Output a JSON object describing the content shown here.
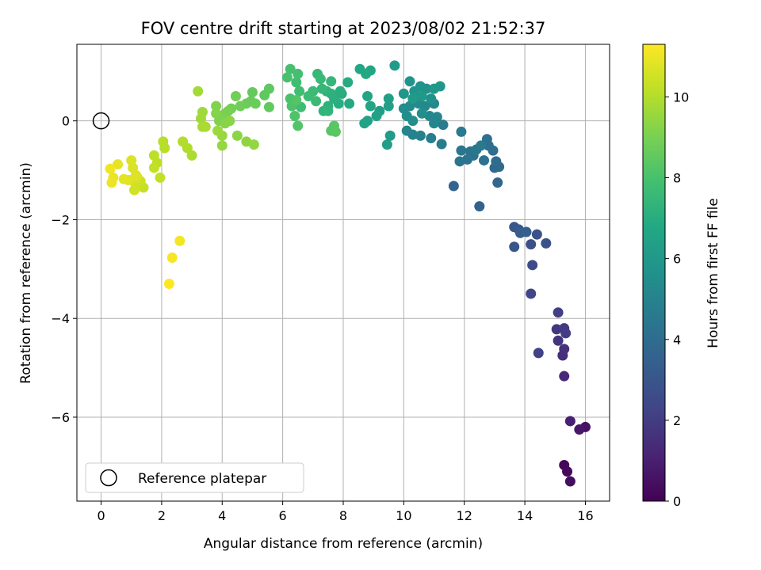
{
  "chart_data": {
    "type": "scatter",
    "title": "FOV centre drift starting at 2023/08/02 21:52:37",
    "xlabel": "Angular distance from reference (arcmin)",
    "ylabel": "Rotation from reference (arcmin)",
    "xlim": [
      -0.8,
      16.8
    ],
    "ylim": [
      -7.7,
      1.55
    ],
    "xticks": [
      0,
      2,
      4,
      6,
      8,
      10,
      12,
      14,
      16
    ],
    "xtick_labels": [
      "0",
      "2",
      "4",
      "6",
      "8",
      "10",
      "12",
      "14",
      "16"
    ],
    "yticks": [
      0,
      -2,
      -4,
      -6
    ],
    "ytick_labels": [
      "0",
      "−2",
      "−4",
      "−6"
    ],
    "grid": true,
    "legend": {
      "placement": "lower-left",
      "entries": [
        "Reference platepar"
      ]
    },
    "reference_point": {
      "x": 0,
      "y": 0
    },
    "colorbar": {
      "label": "Hours from first FF file",
      "colormap": "viridis",
      "range": [
        0,
        11.3
      ],
      "ticks": [
        0,
        2,
        4,
        6,
        8,
        10
      ],
      "tick_labels": [
        "0",
        "2",
        "4",
        "6",
        "8",
        "10"
      ]
    },
    "points": [
      {
        "x": 15.3,
        "y": -6.97,
        "h": 0.2
      },
      {
        "x": 15.4,
        "y": -7.1,
        "h": 0.3
      },
      {
        "x": 15.5,
        "y": -7.3,
        "h": 0.4
      },
      {
        "x": 16.0,
        "y": -6.2,
        "h": 0.5
      },
      {
        "x": 15.8,
        "y": -6.25,
        "h": 0.7
      },
      {
        "x": 15.5,
        "y": -6.08,
        "h": 1.0
      },
      {
        "x": 15.3,
        "y": -5.17,
        "h": 1.3
      },
      {
        "x": 15.25,
        "y": -4.75,
        "h": 1.5
      },
      {
        "x": 15.3,
        "y": -4.62,
        "h": 1.6
      },
      {
        "x": 15.1,
        "y": -4.45,
        "h": 1.7
      },
      {
        "x": 15.05,
        "y": -4.22,
        "h": 1.8
      },
      {
        "x": 15.3,
        "y": -4.2,
        "h": 1.9
      },
      {
        "x": 15.35,
        "y": -4.3,
        "h": 2.0
      },
      {
        "x": 15.1,
        "y": -3.88,
        "h": 2.1
      },
      {
        "x": 14.45,
        "y": -4.7,
        "h": 2.2
      },
      {
        "x": 14.2,
        "y": -3.5,
        "h": 2.4
      },
      {
        "x": 14.25,
        "y": -2.92,
        "h": 2.6
      },
      {
        "x": 14.2,
        "y": -2.5,
        "h": 2.7
      },
      {
        "x": 14.4,
        "y": -2.3,
        "h": 2.8
      },
      {
        "x": 14.7,
        "y": -2.48,
        "h": 2.9
      },
      {
        "x": 13.65,
        "y": -2.55,
        "h": 3.0
      },
      {
        "x": 13.65,
        "y": -2.15,
        "h": 3.1
      },
      {
        "x": 13.8,
        "y": -2.2,
        "h": 3.2
      },
      {
        "x": 13.85,
        "y": -2.27,
        "h": 3.3
      },
      {
        "x": 14.05,
        "y": -2.25,
        "h": 3.4
      },
      {
        "x": 12.5,
        "y": -1.73,
        "h": 3.5
      },
      {
        "x": 11.65,
        "y": -1.32,
        "h": 3.6
      },
      {
        "x": 13.1,
        "y": -1.25,
        "h": 3.7
      },
      {
        "x": 13.0,
        "y": -0.95,
        "h": 3.8
      },
      {
        "x": 13.15,
        "y": -0.93,
        "h": 3.9
      },
      {
        "x": 13.05,
        "y": -0.82,
        "h": 4.0
      },
      {
        "x": 12.95,
        "y": -0.6,
        "h": 4.05
      },
      {
        "x": 12.8,
        "y": -0.5,
        "h": 4.1
      },
      {
        "x": 12.75,
        "y": -0.37,
        "h": 4.15
      },
      {
        "x": 12.65,
        "y": -0.8,
        "h": 4.2
      },
      {
        "x": 12.3,
        "y": -0.7,
        "h": 4.25
      },
      {
        "x": 12.2,
        "y": -0.62,
        "h": 4.3
      },
      {
        "x": 12.1,
        "y": -0.78,
        "h": 4.35
      },
      {
        "x": 11.9,
        "y": -0.6,
        "h": 4.4
      },
      {
        "x": 11.85,
        "y": -0.82,
        "h": 4.45
      },
      {
        "x": 12.4,
        "y": -0.58,
        "h": 4.5
      },
      {
        "x": 12.55,
        "y": -0.5,
        "h": 4.55
      },
      {
        "x": 11.9,
        "y": -0.22,
        "h": 4.6
      },
      {
        "x": 11.3,
        "y": -0.08,
        "h": 4.65
      },
      {
        "x": 11.25,
        "y": -0.47,
        "h": 4.7
      },
      {
        "x": 10.9,
        "y": -0.35,
        "h": 4.8
      },
      {
        "x": 10.55,
        "y": -0.3,
        "h": 4.9
      },
      {
        "x": 10.3,
        "y": -0.28,
        "h": 5.0
      },
      {
        "x": 10.1,
        "y": -0.2,
        "h": 5.05
      },
      {
        "x": 11.0,
        "y": -0.05,
        "h": 5.1
      },
      {
        "x": 10.85,
        "y": 0.1,
        "h": 5.15
      },
      {
        "x": 11.1,
        "y": 0.08,
        "h": 5.2
      },
      {
        "x": 11.0,
        "y": 0.35,
        "h": 5.25
      },
      {
        "x": 10.7,
        "y": 0.3,
        "h": 5.3
      },
      {
        "x": 10.5,
        "y": 0.35,
        "h": 5.35
      },
      {
        "x": 10.2,
        "y": 0.3,
        "h": 5.4
      },
      {
        "x": 10.0,
        "y": 0.25,
        "h": 5.45
      },
      {
        "x": 10.1,
        "y": 0.1,
        "h": 5.5
      },
      {
        "x": 10.3,
        "y": 0.0,
        "h": 5.55
      },
      {
        "x": 10.6,
        "y": 0.15,
        "h": 5.6
      },
      {
        "x": 10.9,
        "y": 0.45,
        "h": 5.65
      },
      {
        "x": 10.75,
        "y": 0.65,
        "h": 5.7
      },
      {
        "x": 10.55,
        "y": 0.7,
        "h": 5.75
      },
      {
        "x": 10.35,
        "y": 0.6,
        "h": 5.8
      },
      {
        "x": 10.2,
        "y": 0.8,
        "h": 5.85
      },
      {
        "x": 10.0,
        "y": 0.55,
        "h": 5.9
      },
      {
        "x": 11.2,
        "y": 0.7,
        "h": 5.95
      },
      {
        "x": 11.0,
        "y": 0.65,
        "h": 6.0
      },
      {
        "x": 10.6,
        "y": 0.5,
        "h": 6.05
      },
      {
        "x": 10.3,
        "y": 0.45,
        "h": 6.1
      },
      {
        "x": 9.7,
        "y": 1.12,
        "h": 6.15
      },
      {
        "x": 9.55,
        "y": -0.3,
        "h": 6.2
      },
      {
        "x": 9.45,
        "y": -0.48,
        "h": 6.25
      },
      {
        "x": 9.2,
        "y": 0.2,
        "h": 6.3
      },
      {
        "x": 9.5,
        "y": 0.45,
        "h": 6.35
      },
      {
        "x": 9.5,
        "y": 0.3,
        "h": 6.4
      },
      {
        "x": 9.1,
        "y": 0.1,
        "h": 6.45
      },
      {
        "x": 8.8,
        "y": 0.0,
        "h": 6.5
      },
      {
        "x": 8.7,
        "y": -0.05,
        "h": 6.55
      },
      {
        "x": 8.9,
        "y": 0.3,
        "h": 6.6
      },
      {
        "x": 8.8,
        "y": 0.5,
        "h": 6.65
      },
      {
        "x": 8.9,
        "y": 1.02,
        "h": 6.7
      },
      {
        "x": 8.55,
        "y": 1.05,
        "h": 6.75
      },
      {
        "x": 8.75,
        "y": 0.95,
        "h": 6.8
      },
      {
        "x": 8.2,
        "y": 0.35,
        "h": 6.85
      },
      {
        "x": 8.15,
        "y": 0.78,
        "h": 6.9
      },
      {
        "x": 7.95,
        "y": 0.55,
        "h": 6.95
      },
      {
        "x": 7.85,
        "y": 0.35,
        "h": 7.0
      },
      {
        "x": 7.9,
        "y": 0.6,
        "h": 7.05
      },
      {
        "x": 7.7,
        "y": 0.45,
        "h": 7.1
      },
      {
        "x": 7.6,
        "y": 0.55,
        "h": 7.15
      },
      {
        "x": 7.5,
        "y": 0.3,
        "h": 7.2
      },
      {
        "x": 7.45,
        "y": 0.6,
        "h": 7.25
      },
      {
        "x": 7.35,
        "y": 0.2,
        "h": 7.3
      },
      {
        "x": 7.5,
        "y": 0.2,
        "h": 7.35
      },
      {
        "x": 7.6,
        "y": 0.8,
        "h": 7.4
      },
      {
        "x": 7.3,
        "y": 0.65,
        "h": 7.45
      },
      {
        "x": 7.15,
        "y": 0.95,
        "h": 7.5
      },
      {
        "x": 7.25,
        "y": 0.85,
        "h": 7.55
      },
      {
        "x": 7.0,
        "y": 0.6,
        "h": 7.6
      },
      {
        "x": 7.1,
        "y": 0.4,
        "h": 7.65
      },
      {
        "x": 6.85,
        "y": 0.5,
        "h": 7.7
      },
      {
        "x": 6.6,
        "y": 0.28,
        "h": 7.75
      },
      {
        "x": 6.55,
        "y": 0.6,
        "h": 7.8
      },
      {
        "x": 6.45,
        "y": 0.78,
        "h": 7.85
      },
      {
        "x": 6.5,
        "y": 0.95,
        "h": 7.9
      },
      {
        "x": 6.25,
        "y": 1.05,
        "h": 7.95
      },
      {
        "x": 6.15,
        "y": 0.88,
        "h": 8.0
      },
      {
        "x": 6.25,
        "y": 0.45,
        "h": 8.05
      },
      {
        "x": 6.3,
        "y": 0.3,
        "h": 8.1
      },
      {
        "x": 6.4,
        "y": 0.1,
        "h": 8.15
      },
      {
        "x": 6.5,
        "y": -0.1,
        "h": 8.2
      },
      {
        "x": 6.45,
        "y": 0.42,
        "h": 8.25
      },
      {
        "x": 7.6,
        "y": -0.2,
        "h": 8.3
      },
      {
        "x": 7.7,
        "y": -0.1,
        "h": 8.35
      },
      {
        "x": 7.75,
        "y": -0.22,
        "h": 8.4
      },
      {
        "x": 5.55,
        "y": 0.65,
        "h": 8.45
      },
      {
        "x": 5.4,
        "y": 0.52,
        "h": 8.5
      },
      {
        "x": 5.55,
        "y": 0.28,
        "h": 8.55
      },
      {
        "x": 5.0,
        "y": 0.58,
        "h": 8.6
      },
      {
        "x": 4.95,
        "y": 0.4,
        "h": 8.65
      },
      {
        "x": 5.1,
        "y": 0.35,
        "h": 8.7
      },
      {
        "x": 4.8,
        "y": 0.35,
        "h": 8.75
      },
      {
        "x": 4.6,
        "y": 0.3,
        "h": 8.8
      },
      {
        "x": 4.45,
        "y": 0.5,
        "h": 8.85
      },
      {
        "x": 4.3,
        "y": 0.25,
        "h": 8.9
      },
      {
        "x": 4.2,
        "y": 0.2,
        "h": 8.95
      },
      {
        "x": 4.1,
        "y": 0.15,
        "h": 9.0
      },
      {
        "x": 4.0,
        "y": 0.05,
        "h": 9.05
      },
      {
        "x": 3.9,
        "y": 0.0,
        "h": 9.1
      },
      {
        "x": 3.8,
        "y": 0.3,
        "h": 9.15
      },
      {
        "x": 3.8,
        "y": 0.15,
        "h": 9.2
      },
      {
        "x": 4.1,
        "y": -0.05,
        "h": 9.25
      },
      {
        "x": 4.25,
        "y": 0.0,
        "h": 9.3
      },
      {
        "x": 4.5,
        "y": -0.3,
        "h": 9.35
      },
      {
        "x": 4.8,
        "y": -0.42,
        "h": 9.4
      },
      {
        "x": 5.05,
        "y": -0.48,
        "h": 9.45
      },
      {
        "x": 4.0,
        "y": -0.5,
        "h": 9.5
      },
      {
        "x": 4.0,
        "y": -0.3,
        "h": 9.55
      },
      {
        "x": 3.85,
        "y": -0.2,
        "h": 9.6
      },
      {
        "x": 3.35,
        "y": 0.18,
        "h": 9.65
      },
      {
        "x": 3.3,
        "y": 0.05,
        "h": 9.7
      },
      {
        "x": 3.2,
        "y": 0.6,
        "h": 9.75
      },
      {
        "x": 3.35,
        "y": -0.12,
        "h": 9.8
      },
      {
        "x": 3.45,
        "y": -0.12,
        "h": 9.85
      },
      {
        "x": 3.0,
        "y": -0.7,
        "h": 9.9
      },
      {
        "x": 2.85,
        "y": -0.55,
        "h": 9.95
      },
      {
        "x": 2.7,
        "y": -0.42,
        "h": 10.0
      },
      {
        "x": 2.1,
        "y": -0.55,
        "h": 10.05
      },
      {
        "x": 2.05,
        "y": -0.42,
        "h": 10.1
      },
      {
        "x": 1.75,
        "y": -0.7,
        "h": 10.15
      },
      {
        "x": 1.85,
        "y": -0.85,
        "h": 10.2
      },
      {
        "x": 1.75,
        "y": -0.95,
        "h": 10.25
      },
      {
        "x": 1.95,
        "y": -1.15,
        "h": 10.3
      },
      {
        "x": 1.4,
        "y": -1.35,
        "h": 10.35
      },
      {
        "x": 1.3,
        "y": -1.22,
        "h": 10.4
      },
      {
        "x": 1.15,
        "y": -1.3,
        "h": 10.45
      },
      {
        "x": 1.1,
        "y": -1.4,
        "h": 10.5
      },
      {
        "x": 1.0,
        "y": -1.2,
        "h": 10.55
      },
      {
        "x": 1.2,
        "y": -1.15,
        "h": 10.6
      },
      {
        "x": 1.05,
        "y": -0.95,
        "h": 10.65
      },
      {
        "x": 1.0,
        "y": -0.8,
        "h": 10.7
      },
      {
        "x": 1.15,
        "y": -1.1,
        "h": 10.75
      },
      {
        "x": 0.9,
        "y": -1.2,
        "h": 10.8
      },
      {
        "x": 0.75,
        "y": -1.18,
        "h": 10.85
      },
      {
        "x": 0.55,
        "y": -0.88,
        "h": 10.9
      },
      {
        "x": 0.4,
        "y": -1.15,
        "h": 10.95
      },
      {
        "x": 0.35,
        "y": -1.25,
        "h": 11.0
      },
      {
        "x": 0.3,
        "y": -0.97,
        "h": 11.05
      },
      {
        "x": 2.6,
        "y": -2.43,
        "h": 11.1
      },
      {
        "x": 2.35,
        "y": -2.77,
        "h": 11.2
      },
      {
        "x": 2.25,
        "y": -3.3,
        "h": 11.3
      }
    ]
  }
}
